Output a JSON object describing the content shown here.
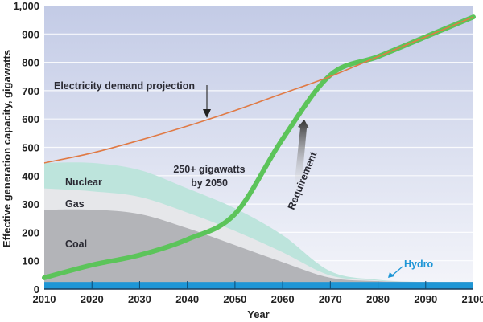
{
  "chart_data": {
    "type": "area",
    "title": "",
    "xlabel": "Year",
    "ylabel": "Effective generation capacity, gigawatts",
    "xlim": [
      2010,
      2100
    ],
    "ylim": [
      0,
      1000
    ],
    "x_ticks": [
      "2010",
      "2020",
      "2030",
      "2040",
      "2050",
      "2060",
      "2070",
      "2080",
      "2090",
      "2100"
    ],
    "y_ticks": [
      "0",
      "100",
      "200",
      "300",
      "400",
      "500",
      "600",
      "700",
      "800",
      "900",
      "1,000"
    ],
    "grid": true,
    "colors": {
      "background_top": "#c3cbe6",
      "background_bottom": "#f2f3f9",
      "coal": "#b3b4b8",
      "gas": "#e6e7ea",
      "nuclear": "#bde4dc",
      "hydro": "#1e96d6",
      "demand": "#e07a45",
      "requirement": "#5cc45a"
    },
    "x": [
      2010,
      2020,
      2030,
      2040,
      2050,
      2060,
      2070,
      2080,
      2090,
      2100
    ],
    "series": [
      {
        "name": "Hydro",
        "stack": true,
        "values": [
          25,
          25,
          25,
          25,
          25,
          25,
          25,
          25,
          25,
          25
        ]
      },
      {
        "name": "Coal",
        "stack": true,
        "values": [
          255,
          255,
          240,
          190,
          130,
          70,
          15,
          3,
          0,
          0
        ]
      },
      {
        "name": "Gas",
        "stack": true,
        "values": [
          75,
          65,
          60,
          55,
          50,
          35,
          8,
          2,
          0,
          0
        ]
      },
      {
        "name": "Nuclear",
        "stack": true,
        "values": [
          90,
          100,
          95,
          85,
          80,
          60,
          15,
          3,
          0,
          0
        ]
      },
      {
        "name": "Electricity demand projection",
        "type": "line",
        "values": [
          445,
          480,
          525,
          575,
          630,
          690,
          750,
          820,
          890,
          960
        ]
      },
      {
        "name": "Requirement",
        "type": "line",
        "values": [
          40,
          85,
          120,
          175,
          265,
          530,
          755,
          820,
          890,
          960
        ]
      }
    ],
    "annotations": [
      {
        "text": "Electricity demand projection",
        "points_to": "demand line near 2044"
      },
      {
        "text": "250+ gigawatts by 2050",
        "lines": [
          "250+ gigawatts",
          "by 2050"
        ]
      },
      {
        "text": "Requirement",
        "arrow": "upward along requirement curve"
      },
      {
        "text": "Nuclear"
      },
      {
        "text": "Gas"
      },
      {
        "text": "Coal"
      },
      {
        "text": "Hydro",
        "points_to": "hydro band near 2082"
      }
    ]
  }
}
